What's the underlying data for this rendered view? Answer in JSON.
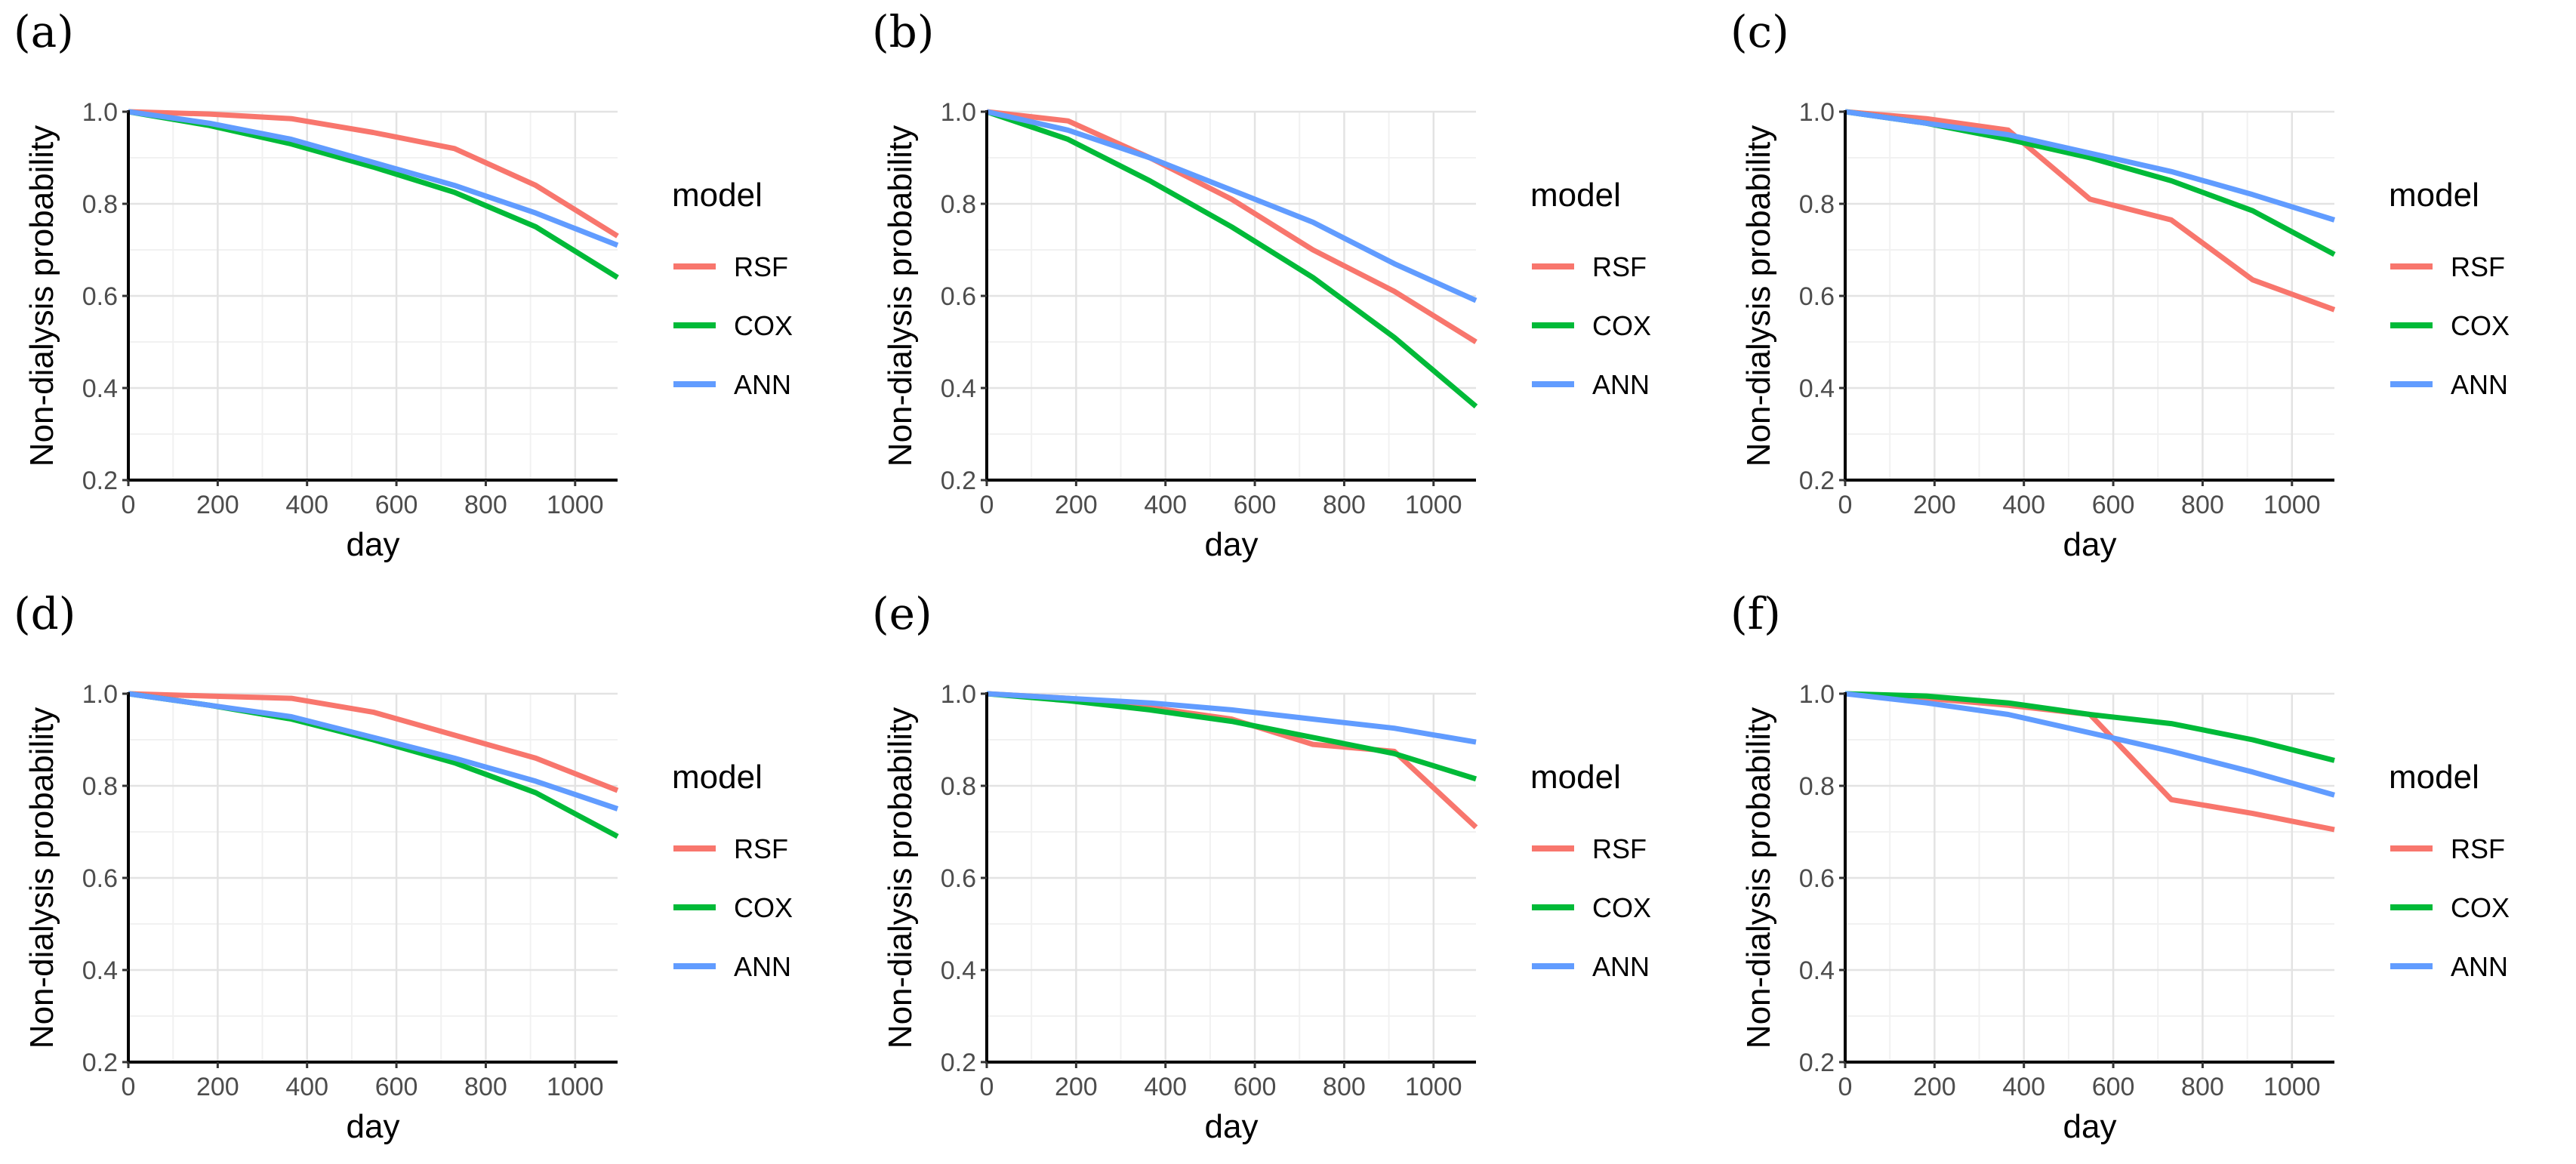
{
  "chart_data": [
    {
      "panel": "(a)",
      "type": "line",
      "xlabel": "day",
      "ylabel": "Non-dialysis probability",
      "xlim": [
        0,
        1095
      ],
      "ylim": [
        0.2,
        1.0
      ],
      "xticks": [
        0,
        200,
        400,
        600,
        800,
        1000
      ],
      "xtick_labels": [
        "0",
        "200",
        "400",
        "600",
        "800",
        "1000"
      ],
      "yticks": [
        0.2,
        0.4,
        0.6,
        0.8,
        1.0
      ],
      "ytick_labels": [
        "0.2",
        "0.4",
        "0.6",
        "0.8",
        "1.0"
      ],
      "legend_title": "model",
      "series": [
        {
          "name": "RSF",
          "color": "#F8766D",
          "x": [
            0,
            182,
            365,
            548,
            730,
            912,
            1095
          ],
          "values": [
            1.0,
            0.995,
            0.985,
            0.955,
            0.92,
            0.84,
            0.73
          ]
        },
        {
          "name": "COX",
          "color": "#00BA38",
          "x": [
            0,
            182,
            365,
            548,
            730,
            912,
            1095
          ],
          "values": [
            1.0,
            0.97,
            0.93,
            0.88,
            0.825,
            0.75,
            0.64
          ]
        },
        {
          "name": "ANN",
          "color": "#619CFF",
          "x": [
            0,
            182,
            365,
            548,
            730,
            912,
            1095
          ],
          "values": [
            1.0,
            0.975,
            0.94,
            0.89,
            0.84,
            0.78,
            0.71
          ]
        }
      ]
    },
    {
      "panel": "(b)",
      "type": "line",
      "xlabel": "day",
      "ylabel": "Non-dialysis probability",
      "xlim": [
        0,
        1095
      ],
      "ylim": [
        0.2,
        1.0
      ],
      "xticks": [
        0,
        200,
        400,
        600,
        800,
        1000
      ],
      "xtick_labels": [
        "0",
        "200",
        "400",
        "600",
        "800",
        "1000"
      ],
      "yticks": [
        0.2,
        0.4,
        0.6,
        0.8,
        1.0
      ],
      "ytick_labels": [
        "0.2",
        "0.4",
        "0.6",
        "0.8",
        "1.0"
      ],
      "legend_title": "model",
      "series": [
        {
          "name": "RSF",
          "color": "#F8766D",
          "x": [
            0,
            182,
            365,
            548,
            730,
            912,
            1095
          ],
          "values": [
            1.0,
            0.98,
            0.9,
            0.81,
            0.7,
            0.61,
            0.5
          ]
        },
        {
          "name": "COX",
          "color": "#00BA38",
          "x": [
            0,
            182,
            365,
            548,
            730,
            912,
            1095
          ],
          "values": [
            1.0,
            0.94,
            0.85,
            0.75,
            0.64,
            0.51,
            0.36
          ]
        },
        {
          "name": "ANN",
          "color": "#619CFF",
          "x": [
            0,
            182,
            365,
            548,
            730,
            912,
            1095
          ],
          "values": [
            1.0,
            0.96,
            0.9,
            0.83,
            0.76,
            0.67,
            0.59
          ]
        }
      ]
    },
    {
      "panel": "(c)",
      "type": "line",
      "xlabel": "day",
      "ylabel": "Non-dialysis probability",
      "xlim": [
        0,
        1095
      ],
      "ylim": [
        0.2,
        1.0
      ],
      "xticks": [
        0,
        200,
        400,
        600,
        800,
        1000
      ],
      "xtick_labels": [
        "0",
        "200",
        "400",
        "600",
        "800",
        "1000"
      ],
      "yticks": [
        0.2,
        0.4,
        0.6,
        0.8,
        1.0
      ],
      "ytick_labels": [
        "0.2",
        "0.4",
        "0.6",
        "0.8",
        "1.0"
      ],
      "legend_title": "model",
      "series": [
        {
          "name": "RSF",
          "color": "#F8766D",
          "x": [
            0,
            182,
            365,
            548,
            730,
            912,
            1095
          ],
          "values": [
            1.0,
            0.985,
            0.96,
            0.81,
            0.765,
            0.635,
            0.57
          ]
        },
        {
          "name": "COX",
          "color": "#00BA38",
          "x": [
            0,
            182,
            365,
            548,
            730,
            912,
            1095
          ],
          "values": [
            1.0,
            0.975,
            0.94,
            0.9,
            0.85,
            0.785,
            0.69
          ]
        },
        {
          "name": "ANN",
          "color": "#619CFF",
          "x": [
            0,
            182,
            365,
            548,
            730,
            912,
            1095
          ],
          "values": [
            1.0,
            0.975,
            0.95,
            0.91,
            0.87,
            0.82,
            0.765
          ]
        }
      ]
    },
    {
      "panel": "(d)",
      "type": "line",
      "xlabel": "day",
      "ylabel": "Non-dialysis probability",
      "xlim": [
        0,
        1095
      ],
      "ylim": [
        0.2,
        1.0
      ],
      "xticks": [
        0,
        200,
        400,
        600,
        800,
        1000
      ],
      "xtick_labels": [
        "0",
        "200",
        "400",
        "600",
        "800",
        "1000"
      ],
      "yticks": [
        0.2,
        0.4,
        0.6,
        0.8,
        1.0
      ],
      "ytick_labels": [
        "0.2",
        "0.4",
        "0.6",
        "0.8",
        "1.0"
      ],
      "legend_title": "model",
      "series": [
        {
          "name": "RSF",
          "color": "#F8766D",
          "x": [
            0,
            182,
            365,
            548,
            730,
            912,
            1095
          ],
          "values": [
            1.0,
            0.995,
            0.99,
            0.96,
            0.91,
            0.86,
            0.79
          ]
        },
        {
          "name": "COX",
          "color": "#00BA38",
          "x": [
            0,
            182,
            365,
            548,
            730,
            912,
            1095
          ],
          "values": [
            1.0,
            0.975,
            0.945,
            0.9,
            0.85,
            0.785,
            0.69
          ]
        },
        {
          "name": "ANN",
          "color": "#619CFF",
          "x": [
            0,
            182,
            365,
            548,
            730,
            912,
            1095
          ],
          "values": [
            1.0,
            0.975,
            0.95,
            0.905,
            0.86,
            0.81,
            0.75
          ]
        }
      ]
    },
    {
      "panel": "(e)",
      "type": "line",
      "xlabel": "day",
      "ylabel": "Non-dialysis probability",
      "xlim": [
        0,
        1095
      ],
      "ylim": [
        0.2,
        1.0
      ],
      "xticks": [
        0,
        200,
        400,
        600,
        800,
        1000
      ],
      "xtick_labels": [
        "0",
        "200",
        "400",
        "600",
        "800",
        "1000"
      ],
      "yticks": [
        0.2,
        0.4,
        0.6,
        0.8,
        1.0
      ],
      "ytick_labels": [
        "0.2",
        "0.4",
        "0.6",
        "0.8",
        "1.0"
      ],
      "legend_title": "model",
      "series": [
        {
          "name": "RSF",
          "color": "#F8766D",
          "x": [
            0,
            182,
            365,
            548,
            730,
            912,
            1095
          ],
          "values": [
            1.0,
            0.99,
            0.97,
            0.945,
            0.89,
            0.875,
            0.71
          ]
        },
        {
          "name": "COX",
          "color": "#00BA38",
          "x": [
            0,
            182,
            365,
            548,
            730,
            912,
            1095
          ],
          "values": [
            1.0,
            0.985,
            0.965,
            0.94,
            0.905,
            0.87,
            0.815
          ]
        },
        {
          "name": "ANN",
          "color": "#619CFF",
          "x": [
            0,
            182,
            365,
            548,
            730,
            912,
            1095
          ],
          "values": [
            1.0,
            0.99,
            0.98,
            0.965,
            0.945,
            0.925,
            0.895
          ]
        }
      ]
    },
    {
      "panel": "(f)",
      "type": "line",
      "xlabel": "day",
      "ylabel": "Non-dialysis probability",
      "xlim": [
        0,
        1095
      ],
      "ylim": [
        0.2,
        1.0
      ],
      "xticks": [
        0,
        200,
        400,
        600,
        800,
        1000
      ],
      "xtick_labels": [
        "0",
        "200",
        "400",
        "600",
        "800",
        "1000"
      ],
      "yticks": [
        0.2,
        0.4,
        0.6,
        0.8,
        1.0
      ],
      "ytick_labels": [
        "0.2",
        "0.4",
        "0.6",
        "0.8",
        "1.0"
      ],
      "legend_title": "model",
      "series": [
        {
          "name": "RSF",
          "color": "#F8766D",
          "x": [
            0,
            182,
            365,
            548,
            730,
            912,
            1095
          ],
          "values": [
            1.0,
            0.99,
            0.975,
            0.955,
            0.77,
            0.74,
            0.705
          ]
        },
        {
          "name": "COX",
          "color": "#00BA38",
          "x": [
            0,
            182,
            365,
            548,
            730,
            912,
            1095
          ],
          "values": [
            1.0,
            0.995,
            0.98,
            0.955,
            0.935,
            0.9,
            0.855
          ]
        },
        {
          "name": "ANN",
          "color": "#619CFF",
          "x": [
            0,
            182,
            365,
            548,
            730,
            912,
            1095
          ],
          "values": [
            1.0,
            0.98,
            0.955,
            0.915,
            0.875,
            0.83,
            0.78
          ]
        }
      ]
    }
  ]
}
